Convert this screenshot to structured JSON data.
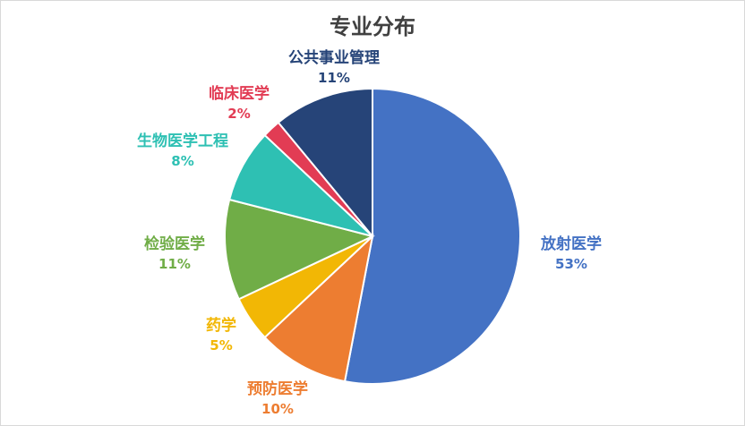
{
  "chart_data": {
    "type": "pie",
    "title": "专业分布",
    "slices": [
      {
        "label": "放射医学",
        "value": 53,
        "percent_label": "53%",
        "color": "#4472C4"
      },
      {
        "label": "预防医学",
        "value": 10,
        "percent_label": "10%",
        "color": "#ED7D31"
      },
      {
        "label": "药学",
        "value": 5,
        "percent_label": "5%",
        "color": "#F2B705"
      },
      {
        "label": "检验医学",
        "value": 11,
        "percent_label": "11%",
        "color": "#70AD47"
      },
      {
        "label": "生物医学工程",
        "value": 8,
        "percent_label": "8%",
        "color": "#2EC0B3"
      },
      {
        "label": "临床医学",
        "value": 2,
        "percent_label": "2%",
        "color": "#E23C54"
      },
      {
        "label": "公共事业管理",
        "value": 11,
        "percent_label": "11%",
        "color": "#264478"
      }
    ],
    "start": "12 o'clock",
    "direction": "clockwise",
    "legend": "none"
  }
}
